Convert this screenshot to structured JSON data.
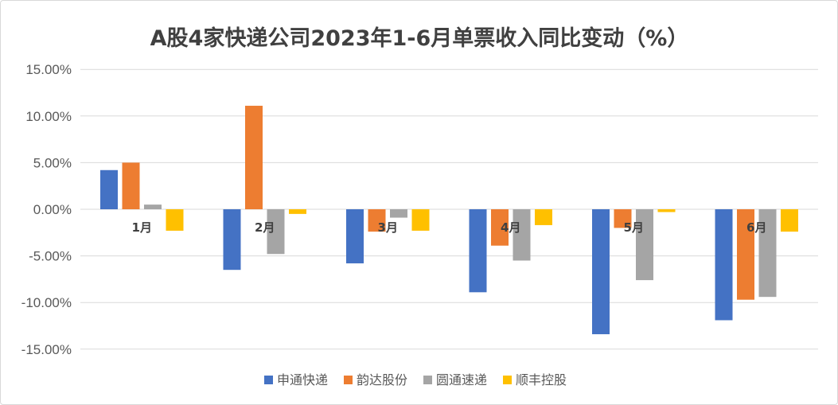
{
  "chart_data": {
    "type": "bar",
    "title": "A股4家快递公司2023年1-6月单票收入同比变动（%）",
    "categories": [
      "1月",
      "2月",
      "3月",
      "4月",
      "5月",
      "6月"
    ],
    "series": [
      {
        "name": "申通快递",
        "color": "#4472C4",
        "values": [
          4.2,
          -6.5,
          -5.8,
          -8.9,
          -13.4,
          -11.9
        ]
      },
      {
        "name": "韵达股份",
        "color": "#ED7D31",
        "values": [
          5.0,
          11.1,
          -2.4,
          -3.9,
          -2.0,
          -9.7
        ]
      },
      {
        "name": "圆通速递",
        "color": "#A5A5A5",
        "values": [
          0.5,
          -4.8,
          -0.9,
          -5.5,
          -7.6,
          -9.4
        ]
      },
      {
        "name": "顺丰控股",
        "color": "#FFC000",
        "values": [
          -2.3,
          -0.5,
          -2.3,
          -1.7,
          -0.3,
          -2.4
        ]
      }
    ],
    "ylim": [
      -15,
      15
    ],
    "yticks": [
      "15.00%",
      "10.00%",
      "5.00%",
      "0.00%",
      "-5.00%",
      "-10.00%",
      "-15.00%"
    ],
    "grid": true,
    "legend_position": "bottom"
  }
}
